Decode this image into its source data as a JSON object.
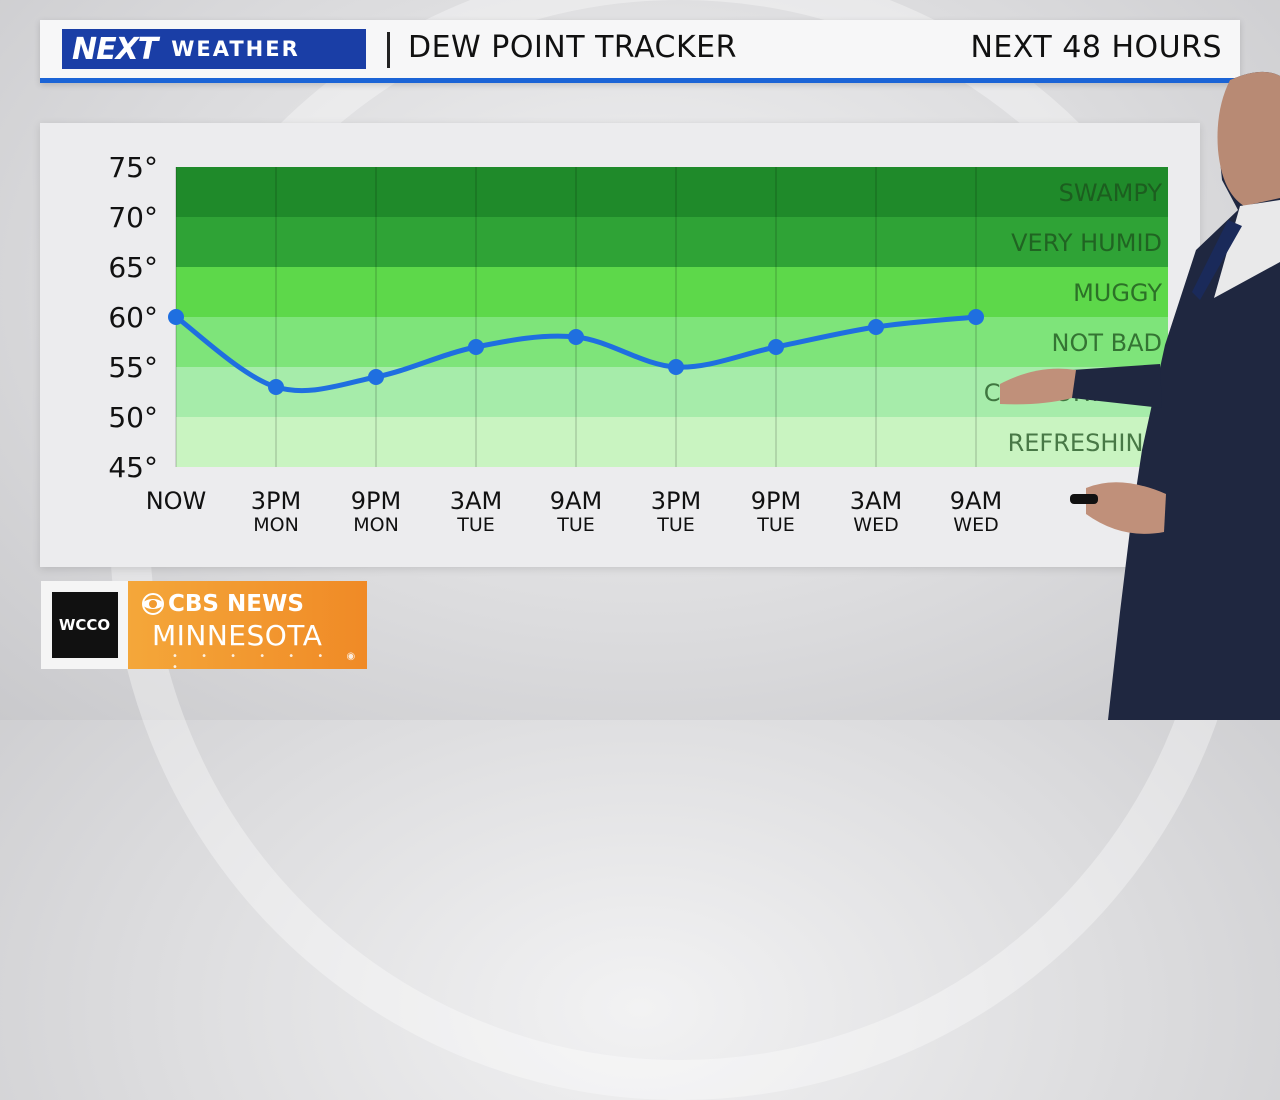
{
  "header": {
    "brand_next": "NEXT",
    "brand_weather": "WEATHER",
    "title": "DEW POINT TRACKER",
    "range": "NEXT 48 HOURS"
  },
  "logo": {
    "station": "WCCO",
    "network": "CBS NEWS",
    "region": "MINNESOTA"
  },
  "chart_data": {
    "type": "line",
    "title": "DEW POINT TRACKER",
    "ylim": [
      45,
      75
    ],
    "yticks": [
      "75°",
      "70°",
      "65°",
      "60°",
      "55°",
      "50°",
      "45°"
    ],
    "categories": [
      {
        "top": "NOW",
        "bottom": ""
      },
      {
        "top": "3PM",
        "bottom": "MON"
      },
      {
        "top": "9PM",
        "bottom": "MON"
      },
      {
        "top": "3AM",
        "bottom": "TUE"
      },
      {
        "top": "9AM",
        "bottom": "TUE"
      },
      {
        "top": "3PM",
        "bottom": "TUE"
      },
      {
        "top": "9PM",
        "bottom": "TUE"
      },
      {
        "top": "3AM",
        "bottom": "WED"
      },
      {
        "top": "9AM",
        "bottom": "WED"
      }
    ],
    "values": [
      60,
      53,
      54,
      57,
      58,
      55,
      57,
      59,
      60
    ],
    "bands": [
      {
        "label": "SWAMPY",
        "from": 70,
        "to": 75,
        "color": "#1f8a2a"
      },
      {
        "label": "VERY HUMID",
        "from": 65,
        "to": 70,
        "color": "#2fa336"
      },
      {
        "label": "MUGGY",
        "from": 60,
        "to": 65,
        "color": "#5dd84a"
      },
      {
        "label": "NOT BAD",
        "from": 55,
        "to": 60,
        "color": "#7ee47a"
      },
      {
        "label": "COMFORTABLE",
        "from": 50,
        "to": 55,
        "color": "#a6ecaa"
      },
      {
        "label": "REFRESHING",
        "from": 45,
        "to": 50,
        "color": "#c9f4c1"
      }
    ],
    "line_color": "#1f6fe0",
    "grid": true
  }
}
